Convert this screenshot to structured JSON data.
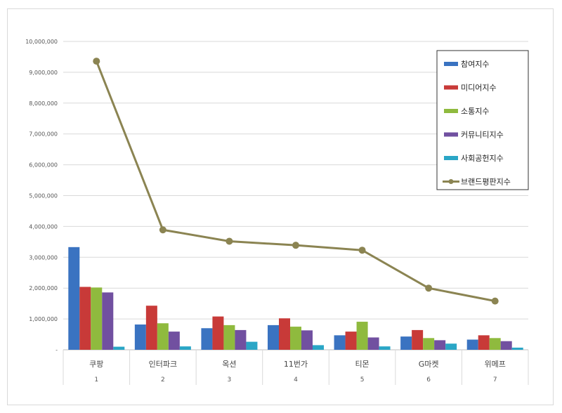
{
  "chart_data": {
    "type": "bar",
    "title": "",
    "xlabel": "",
    "ylabel": "",
    "ylim": [
      0,
      10000000
    ],
    "ytick_step": 1000000,
    "ytick_labels": [
      "-",
      "1,000,000",
      "2,000,000",
      "3,000,000",
      "4,000,000",
      "5,000,000",
      "6,000,000",
      "7,000,000",
      "8,000,000",
      "9,000,000",
      "10,000,000"
    ],
    "grid": true,
    "legend_position": "top-right",
    "categories": [
      "쿠팡",
      "인터파크",
      "옥션",
      "11번가",
      "티몬",
      "G마켓",
      "위메프"
    ],
    "ranks": [
      "1",
      "2",
      "3",
      "4",
      "5",
      "6",
      "7"
    ],
    "series": [
      {
        "name": "참여지수",
        "type": "bar",
        "color": "#3a73c1",
        "values": [
          3330000,
          820000,
          700000,
          800000,
          470000,
          430000,
          330000
        ]
      },
      {
        "name": "미디어지수",
        "type": "bar",
        "color": "#c83a38",
        "values": [
          2040000,
          1430000,
          1080000,
          1020000,
          590000,
          640000,
          470000
        ]
      },
      {
        "name": "소통지수",
        "type": "bar",
        "color": "#8fba3e",
        "values": [
          2020000,
          860000,
          800000,
          750000,
          910000,
          380000,
          380000
        ]
      },
      {
        "name": "커뮤니티지수",
        "type": "bar",
        "color": "#7150a0",
        "values": [
          1860000,
          590000,
          640000,
          630000,
          400000,
          310000,
          280000
        ]
      },
      {
        "name": "사회공헌지수",
        "type": "bar",
        "color": "#2aa6c6",
        "values": [
          100000,
          110000,
          260000,
          150000,
          110000,
          200000,
          70000
        ]
      },
      {
        "name": "브랜드평판지수",
        "type": "line",
        "color": "#8b8452",
        "values": [
          9360000,
          3890000,
          3520000,
          3390000,
          3230000,
          2000000,
          1580000
        ]
      }
    ]
  }
}
